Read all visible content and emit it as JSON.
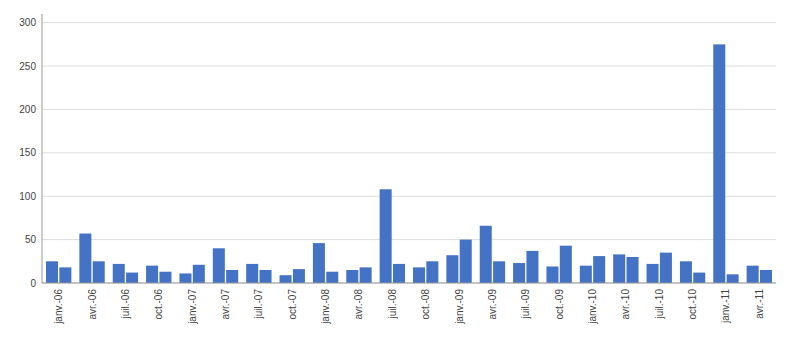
{
  "chart_data": {
    "type": "bar",
    "categories": [
      "janv.-06",
      "avr.-06",
      "juil.-06",
      "oct.-06",
      "janv.-07",
      "avr.-07",
      "juil.-07",
      "oct.-07",
      "janv.-08",
      "avr.-08",
      "juil.-08",
      "oct.-08",
      "janv.-09",
      "avr.-09",
      "juil.-09",
      "oct.-09",
      "janv.-10",
      "avr.-10",
      "juil.-10",
      "oct.-10",
      "janv.-11",
      "avr.-11"
    ],
    "series": [
      {
        "color": "#4472C4",
        "values": [
          25,
          57,
          22,
          20,
          11,
          40,
          22,
          9,
          46,
          15,
          108,
          18,
          32,
          66,
          23,
          19,
          20,
          33,
          22,
          25,
          275,
          20
        ]
      },
      {
        "color": "#4472C4",
        "values": [
          18,
          25,
          12,
          13,
          21,
          15,
          15,
          16,
          13,
          18,
          22,
          25,
          50,
          25,
          37,
          43,
          31,
          30,
          35,
          12,
          10,
          15
        ]
      }
    ],
    "ylim": [
      0,
      310
    ],
    "yticks": [
      0,
      50,
      100,
      150,
      200,
      250,
      300
    ],
    "grid": true
  }
}
